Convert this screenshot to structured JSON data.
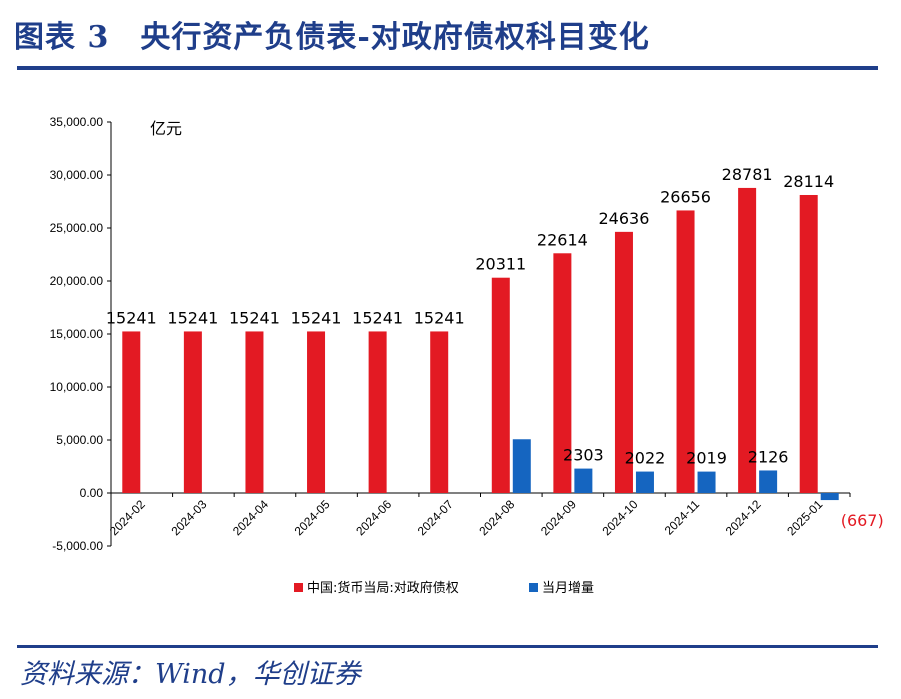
{
  "title": "图表 3　央行资产负债表-对政府债权科目变化",
  "source": "资料来源：Wind，华创证券",
  "chart_data": {
    "type": "bar",
    "unit": "亿元",
    "categories": [
      "2024-02",
      "2024-03",
      "2024-04",
      "2024-05",
      "2024-06",
      "2024-07",
      "2024-08",
      "2024-09",
      "2024-10",
      "2024-11",
      "2024-12",
      "2025-01"
    ],
    "series": [
      {
        "name": "中国:货币当局:对政府债权",
        "color": "#e31a23",
        "values": [
          15241,
          15241,
          15241,
          15241,
          15241,
          15241,
          20311,
          22614,
          24636,
          26656,
          28781,
          28114
        ],
        "labels": [
          "15241",
          "15241",
          "15241",
          "15241",
          "15241",
          "15241",
          "20311",
          "22614",
          "24636",
          "26656",
          "28781",
          "28114"
        ]
      },
      {
        "name": "当月增量",
        "color": "#1565c0",
        "values": [
          0,
          0,
          0,
          0,
          0,
          0,
          5070,
          2303,
          2022,
          2019,
          2126,
          -667
        ],
        "labels": [
          "",
          "",
          "",
          "",
          "",
          "",
          "",
          "2303",
          "2022",
          "2019",
          "2126",
          "(667)"
        ]
      }
    ],
    "negative_label_color": "#e31a23",
    "ylim": [
      -5000,
      35000
    ],
    "yticks": [
      -5000,
      0,
      5000,
      10000,
      15000,
      20000,
      25000,
      30000,
      35000
    ],
    "ytick_labels": [
      "-5,000.00",
      "0.00",
      "5,000.00",
      "10,000.00",
      "15,000.00",
      "20,000.00",
      "25,000.00",
      "30,000.00",
      "35,000.00"
    ],
    "grid": false,
    "legend_position": "bottom"
  }
}
